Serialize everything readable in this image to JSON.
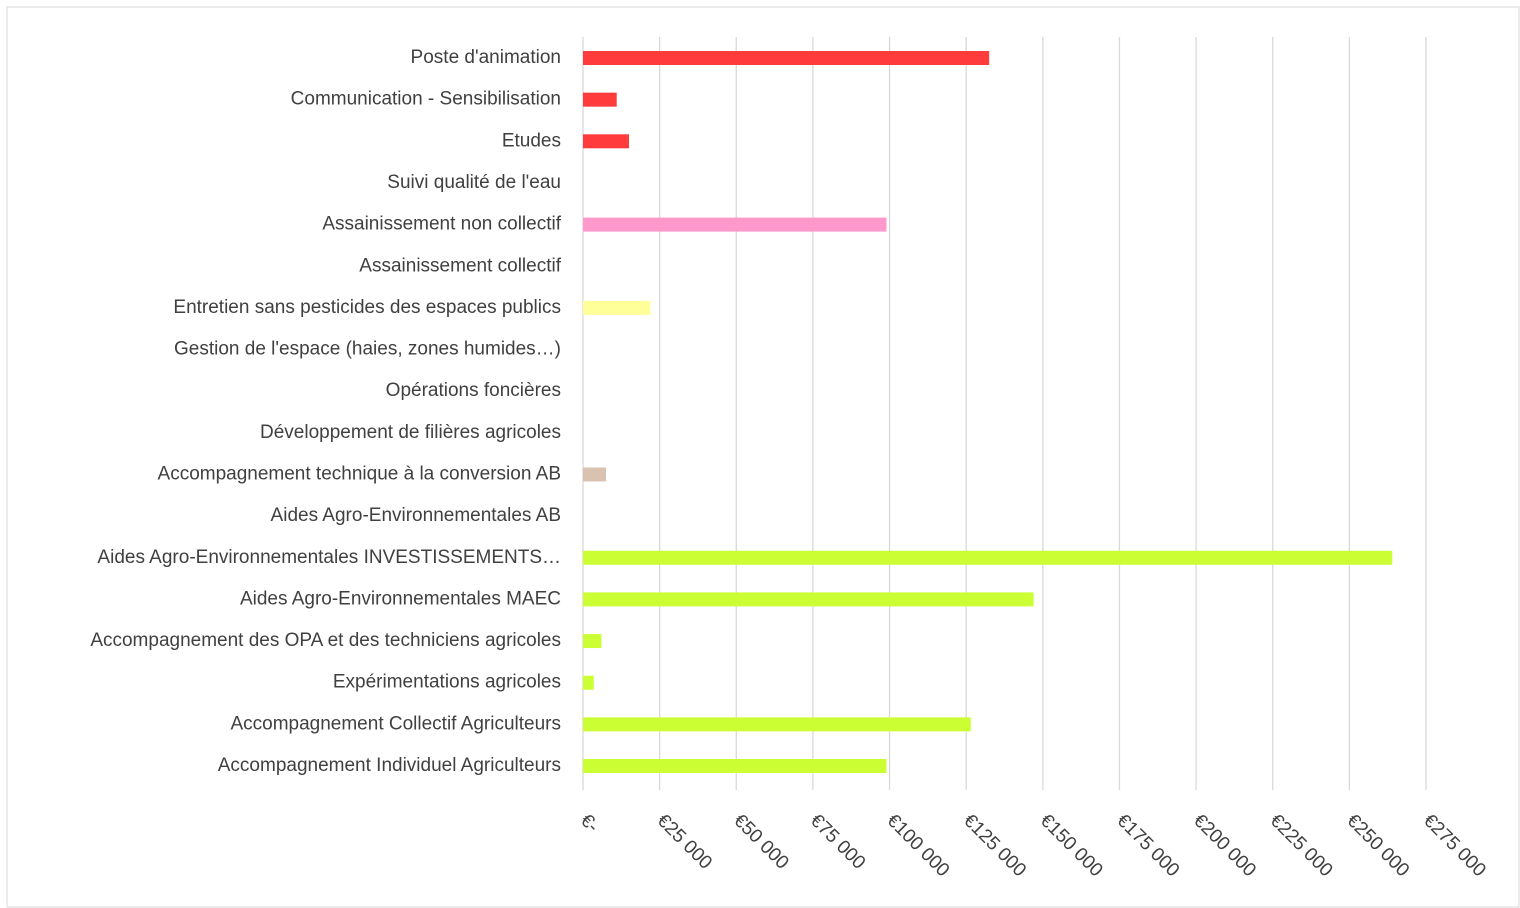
{
  "chart_data": {
    "type": "barh",
    "categories": [
      "Poste d'animation",
      "Communication - Sensibilisation",
      "Etudes",
      "Suivi qualité de l'eau",
      "Assainissement non collectif",
      "Assainissement collectif",
      "Entretien sans pesticides des espaces publics",
      "Gestion de l'espace (haies, zones humides…)",
      "Opérations foncières",
      "Développement de filières agricoles",
      "Accompagnement technique à la conversion AB",
      "Aides Agro-Environnementales AB",
      "Aides Agro-Environnementales INVESTISSEMENTS…",
      "Aides Agro-Environnementales MAEC",
      "Accompagnement des OPA et des techniciens agricoles",
      "Expérimentations agricoles",
      "Accompagnement Collectif Agriculteurs",
      "Accompagnement Individuel Agriculteurs"
    ],
    "values": [
      132500,
      11000,
      15000,
      0,
      99000,
      0,
      22000,
      0,
      0,
      0,
      7500,
      0,
      264000,
      147000,
      6000,
      3500,
      126500,
      99000
    ],
    "colors": [
      "#ff3b3b",
      "#ff3b3b",
      "#ff3b3b",
      "#ff3b3b",
      "#ff99cc",
      "#ff99cc",
      "#ffff99",
      "#ccff33",
      "#ccff33",
      "#ccff33",
      "#d9c3b0",
      "#ccff33",
      "#ccff33",
      "#ccff33",
      "#ccff33",
      "#ccff33",
      "#ccff33",
      "#ccff33"
    ],
    "xlim": [
      0,
      275000
    ],
    "xticks": [
      {
        "value": 0,
        "label": "€-"
      },
      {
        "value": 25000,
        "label": "€25 000"
      },
      {
        "value": 50000,
        "label": "€50 000"
      },
      {
        "value": 75000,
        "label": "€75 000"
      },
      {
        "value": 100000,
        "label": "€100 000"
      },
      {
        "value": 125000,
        "label": "€125 000"
      },
      {
        "value": 150000,
        "label": "€150 000"
      },
      {
        "value": 175000,
        "label": "€175 000"
      },
      {
        "value": 200000,
        "label": "€200 000"
      },
      {
        "value": 225000,
        "label": "€225 000"
      },
      {
        "value": 250000,
        "label": "€250 000"
      },
      {
        "value": 275000,
        "label": "€275 000"
      }
    ],
    "grid": true
  }
}
